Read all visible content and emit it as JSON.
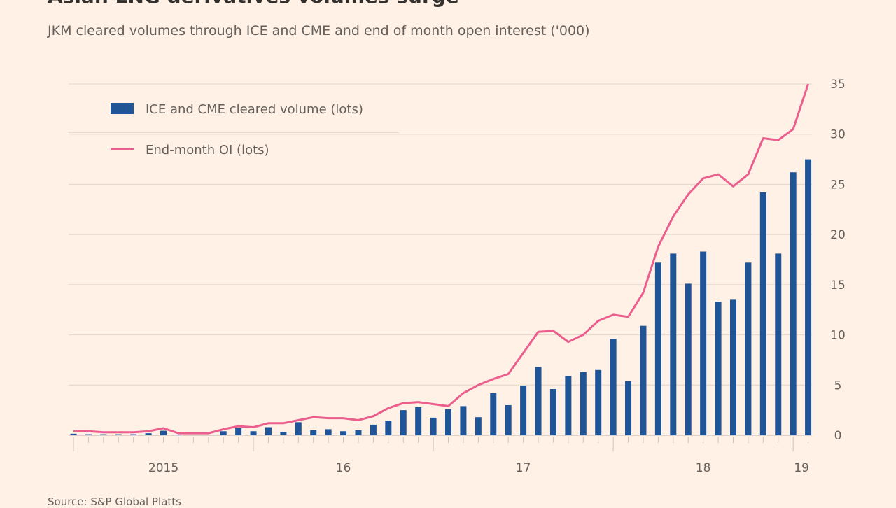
{
  "title": "Asian LNG derivatives volumes surge",
  "subtitle": "JKM cleared volumes through ICE and CME and end of month open interest ('000)",
  "source": "Source: S&P Global Platts",
  "colors": {
    "background": "#fff1e5",
    "bars": "#1f5496",
    "line": "#eb5f8e",
    "grid": "#e6d9ce",
    "text": "#66605c"
  },
  "chart_data": {
    "type": "bar+line",
    "title": "Asian LNG derivatives volumes surge",
    "subtitle": "JKM cleared volumes through ICE and CME and end of month open interest ('000)",
    "x_start": "2015-01",
    "x_end": "2019-02",
    "x_frequency": "monthly",
    "x_tick_labels": [
      "2015",
      "16",
      "17",
      "18",
      "19"
    ],
    "y_tick_labels": [
      "0",
      "5",
      "10",
      "15",
      "20",
      "25",
      "30",
      "35"
    ],
    "ylim": [
      0,
      35
    ],
    "y_axis_side": "right",
    "grid": true,
    "legend_placement": "top-left",
    "series": [
      {
        "name": "ICE and CME cleared volume (lots)",
        "type": "bar",
        "values": [
          0.15,
          0.1,
          0.1,
          0.1,
          0.1,
          0.2,
          0.45,
          0.05,
          0,
          0,
          0.4,
          0.7,
          0.4,
          0.8,
          0.3,
          1.3,
          0.5,
          0.6,
          0.4,
          0.5,
          1.05,
          1.45,
          2.5,
          2.8,
          1.75,
          2.6,
          2.9,
          1.8,
          4.2,
          3.0,
          4.95,
          6.8,
          4.6,
          5.9,
          6.3,
          6.5,
          9.6,
          5.4,
          10.9,
          17.2,
          18.1,
          15.1,
          18.3,
          13.3,
          13.5,
          17.2,
          24.2,
          18.1,
          26.2,
          27.5
        ]
      },
      {
        "name": "End-month OI (lots)",
        "type": "line",
        "values": [
          0.4,
          0.4,
          0.3,
          0.3,
          0.3,
          0.4,
          0.7,
          0.2,
          0.2,
          0.2,
          0.6,
          0.9,
          0.8,
          1.2,
          1.2,
          1.5,
          1.8,
          1.7,
          1.7,
          1.5,
          1.9,
          2.7,
          3.2,
          3.3,
          3.1,
          2.9,
          4.2,
          5.0,
          5.6,
          6.1,
          8.2,
          10.3,
          10.4,
          9.3,
          10.0,
          11.4,
          12.0,
          11.8,
          14.2,
          18.8,
          21.8,
          24.0,
          25.6,
          26.0,
          24.8,
          26.0,
          29.6,
          29.4,
          30.5,
          35.0
        ]
      }
    ]
  }
}
